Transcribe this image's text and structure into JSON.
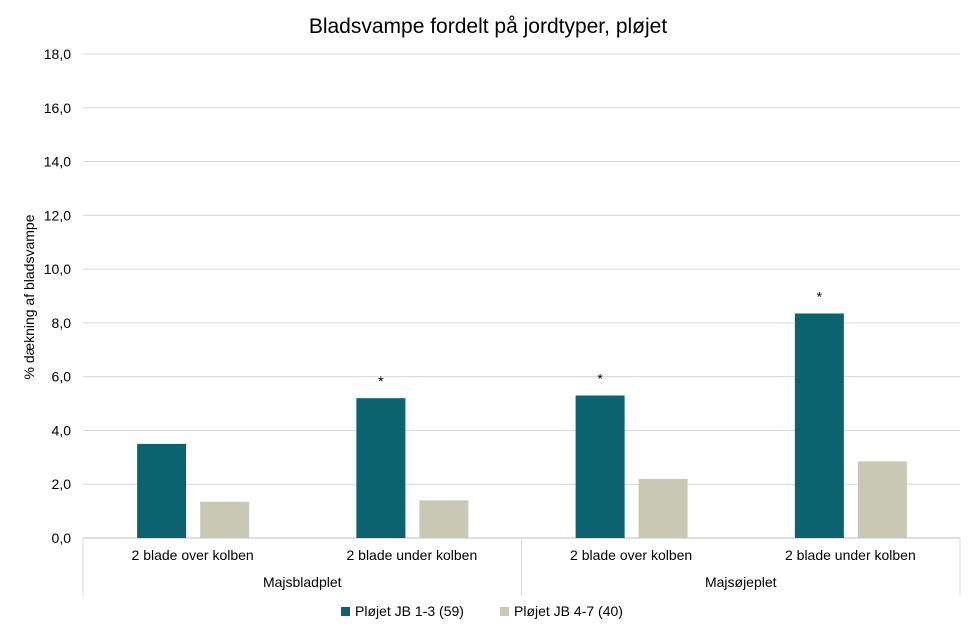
{
  "chart_data": {
    "type": "bar",
    "title": "Bladsvampe fordelt på jordtyper, pløjet",
    "ylabel": "% dækning af bladsvampe",
    "xlabel": "",
    "ylim": [
      0,
      18
    ],
    "yticks": [
      "0,0",
      "2,0",
      "4,0",
      "6,0",
      "8,0",
      "10,0",
      "12,0",
      "14,0",
      "16,0",
      "18,0"
    ],
    "grid": true,
    "legend_position": "bottom",
    "groups": [
      {
        "name": "Majsbladplet",
        "categories": [
          "2 blade over kolben",
          "2 blade under kolben"
        ]
      },
      {
        "name": "Majsøjeplet",
        "categories": [
          "2 blade over kolben",
          "2 blade under kolben"
        ]
      }
    ],
    "categories": [
      "2 blade over kolben",
      "2 blade under kolben",
      "2 blade over kolben",
      "2 blade under kolben"
    ],
    "series": [
      {
        "name": "Pløjet JB 1-3 (59)",
        "color": "#0c6370",
        "values": [
          3.5,
          5.2,
          5.3,
          8.35
        ]
      },
      {
        "name": "Pløjet JB 4-7 (40)",
        "color": "#c8c8b4",
        "values": [
          1.35,
          1.4,
          2.2,
          2.85
        ]
      }
    ],
    "annotations": [
      {
        "category_index": 1,
        "series_index": 0,
        "text": "*"
      },
      {
        "category_index": 2,
        "series_index": 0,
        "text": "*"
      },
      {
        "category_index": 3,
        "series_index": 0,
        "text": "*"
      }
    ]
  }
}
